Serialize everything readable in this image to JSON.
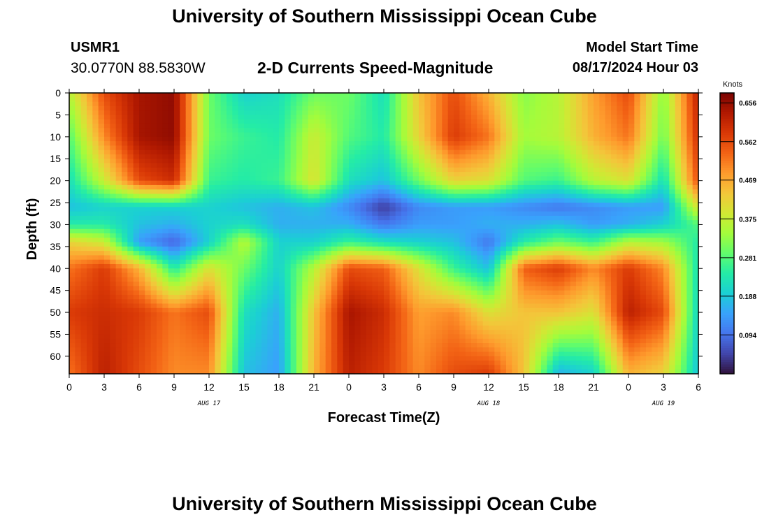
{
  "header": {
    "title": "University of Southern Mississippi Ocean Cube",
    "station": "USMR1",
    "coords": "30.0770N  88.5830W",
    "subtitle": "2-D Currents Speed-Magnitude",
    "start_label": "Model Start Time",
    "start_value": "08/17/2024 Hour 03"
  },
  "footer": {
    "title": "University of Southern Mississippi Ocean Cube"
  },
  "colors": {
    "scale": [
      "#30123b",
      "#4145ab",
      "#4675ed",
      "#39a2fc",
      "#1bcfd4",
      "#24eca6",
      "#61fc6c",
      "#a4fc3b",
      "#d1e834",
      "#f3c63a",
      "#fe9b2d",
      "#f36315",
      "#d93806",
      "#b11901",
      "#7a0402"
    ]
  },
  "chart_data": {
    "type": "heatmap",
    "title": "2-D Currents Speed-Magnitude",
    "xlabel": "Forecast Time(Z)",
    "ylabel": "Depth (ft)",
    "x_ticks": [
      "0",
      "3",
      "6",
      "9",
      "12",
      "15",
      "18",
      "21",
      "0",
      "3",
      "6",
      "9",
      "12",
      "15",
      "18",
      "21",
      "0",
      "3",
      "6"
    ],
    "x_range_hours_from_start": [
      0,
      54
    ],
    "date_labels": [
      {
        "label": "AUG 17",
        "hour": 12
      },
      {
        "label": "AUG 18",
        "hour": 36
      },
      {
        "label": "AUG 19",
        "hour": 51
      }
    ],
    "y_ticks": [
      "0",
      "5",
      "10",
      "15",
      "20",
      "25",
      "30",
      "35",
      "40",
      "45",
      "50",
      "55",
      "60"
    ],
    "ylim": [
      0,
      64
    ],
    "y_inverted": true,
    "colorbar": {
      "unit": "Knots",
      "ticks": [
        "0.656",
        "0.562",
        "0.469",
        "0.375",
        "0.281",
        "0.188",
        "0.094"
      ],
      "range": [
        0,
        0.68
      ]
    },
    "depths_ft": [
      0,
      10,
      20,
      26,
      30,
      34,
      40,
      50,
      64
    ],
    "times_h": [
      0,
      3,
      6,
      9,
      12,
      15,
      18,
      21,
      24,
      27,
      30,
      33,
      36,
      39,
      42,
      45,
      48,
      51,
      54
    ],
    "values": [
      [
        0.36,
        0.28,
        0.22,
        0.18,
        0.24,
        0.42,
        0.52,
        0.58,
        0.52
      ],
      [
        0.56,
        0.5,
        0.38,
        0.2,
        0.24,
        0.38,
        0.58,
        0.6,
        0.62
      ],
      [
        0.64,
        0.64,
        0.56,
        0.2,
        0.18,
        0.14,
        0.46,
        0.58,
        0.56
      ],
      [
        0.66,
        0.66,
        0.6,
        0.2,
        0.16,
        0.08,
        0.24,
        0.52,
        0.5
      ],
      [
        0.3,
        0.3,
        0.26,
        0.2,
        0.2,
        0.2,
        0.4,
        0.56,
        0.5
      ],
      [
        0.2,
        0.26,
        0.24,
        0.18,
        0.22,
        0.36,
        0.3,
        0.22,
        0.18
      ],
      [
        0.22,
        0.24,
        0.26,
        0.16,
        0.16,
        0.2,
        0.2,
        0.16,
        0.14
      ],
      [
        0.3,
        0.38,
        0.4,
        0.18,
        0.16,
        0.2,
        0.36,
        0.44,
        0.46
      ],
      [
        0.3,
        0.28,
        0.22,
        0.12,
        0.16,
        0.26,
        0.56,
        0.64,
        0.62
      ],
      [
        0.22,
        0.24,
        0.18,
        0.04,
        0.1,
        0.22,
        0.54,
        0.6,
        0.58
      ],
      [
        0.44,
        0.42,
        0.3,
        0.12,
        0.14,
        0.2,
        0.4,
        0.48,
        0.5
      ],
      [
        0.56,
        0.58,
        0.42,
        0.14,
        0.14,
        0.18,
        0.26,
        0.5,
        0.56
      ],
      [
        0.46,
        0.52,
        0.4,
        0.14,
        0.16,
        0.1,
        0.18,
        0.4,
        0.58
      ],
      [
        0.32,
        0.34,
        0.28,
        0.12,
        0.16,
        0.24,
        0.54,
        0.44,
        0.44
      ],
      [
        0.36,
        0.36,
        0.26,
        0.1,
        0.18,
        0.3,
        0.58,
        0.44,
        0.16
      ],
      [
        0.48,
        0.46,
        0.36,
        0.12,
        0.14,
        0.26,
        0.5,
        0.4,
        0.2
      ],
      [
        0.56,
        0.52,
        0.4,
        0.14,
        0.16,
        0.36,
        0.58,
        0.62,
        0.46
      ],
      [
        0.32,
        0.3,
        0.22,
        0.14,
        0.2,
        0.34,
        0.5,
        0.56,
        0.42
      ],
      [
        0.62,
        0.6,
        0.56,
        0.4,
        0.28,
        0.24,
        0.22,
        0.2,
        0.18
      ]
    ]
  }
}
